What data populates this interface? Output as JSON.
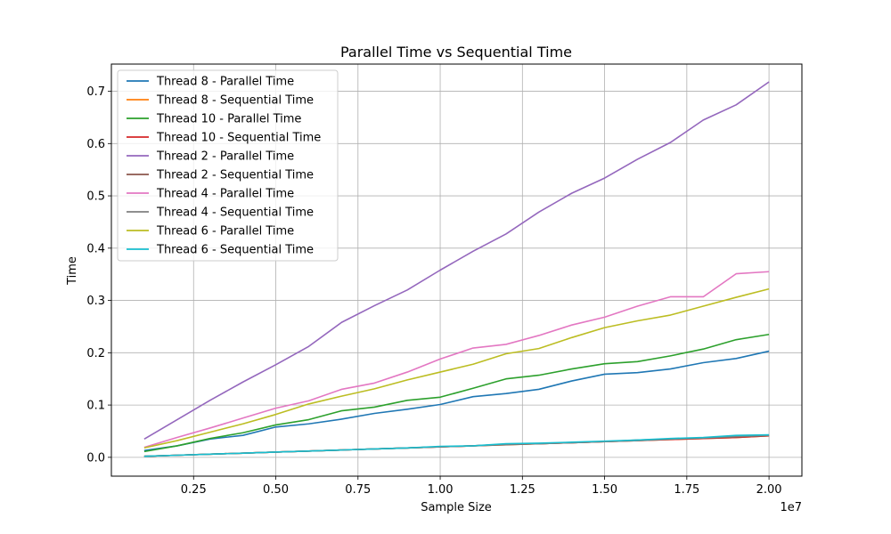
{
  "chart_data": {
    "type": "line",
    "title": "Parallel Time vs Sequential Time",
    "xlabel": "Sample Size",
    "ylabel": "Time",
    "x_offset_label": "1e7",
    "x": [
      1000000,
      2000000,
      3000000,
      4000000,
      5000000,
      6000000,
      7000000,
      8000000,
      9000000,
      10000000,
      11000000,
      12000000,
      13000000,
      14000000,
      15000000,
      16000000,
      17000000,
      18000000,
      19000000,
      20000000
    ],
    "xlim": [
      0,
      21000000
    ],
    "ylim": [
      -0.036,
      0.752
    ],
    "x_ticks": [
      {
        "value": 2500000,
        "label": "0.25"
      },
      {
        "value": 5000000,
        "label": "0.50"
      },
      {
        "value": 7500000,
        "label": "0.75"
      },
      {
        "value": 10000000,
        "label": "1.00"
      },
      {
        "value": 12500000,
        "label": "1.25"
      },
      {
        "value": 15000000,
        "label": "1.50"
      },
      {
        "value": 17500000,
        "label": "1.75"
      },
      {
        "value": 20000000,
        "label": "2.00"
      }
    ],
    "y_ticks": [
      {
        "value": 0.0,
        "label": "0.0"
      },
      {
        "value": 0.1,
        "label": "0.1"
      },
      {
        "value": 0.2,
        "label": "0.2"
      },
      {
        "value": 0.3,
        "label": "0.3"
      },
      {
        "value": 0.4,
        "label": "0.4"
      },
      {
        "value": 0.5,
        "label": "0.5"
      },
      {
        "value": 0.6,
        "label": "0.6"
      },
      {
        "value": 0.7,
        "label": "0.7"
      }
    ],
    "grid": true,
    "legend_position": "top-left",
    "series": [
      {
        "name": "Thread 8 - Parallel Time",
        "color": "#1f77b4",
        "values": [
          0.013,
          0.022,
          0.035,
          0.042,
          0.058,
          0.064,
          0.073,
          0.084,
          0.092,
          0.101,
          0.116,
          0.122,
          0.13,
          0.146,
          0.159,
          0.162,
          0.169,
          0.181,
          0.189,
          0.203
        ]
      },
      {
        "name": "Thread 8 - Sequential Time",
        "color": "#ff7f0e",
        "values": [
          0.002,
          0.004,
          0.006,
          0.008,
          0.01,
          0.012,
          0.014,
          0.016,
          0.018,
          0.02,
          0.022,
          0.024,
          0.026,
          0.028,
          0.03,
          0.032,
          0.034,
          0.036,
          0.038,
          0.041
        ]
      },
      {
        "name": "Thread 10 - Parallel Time",
        "color": "#2ca02c",
        "values": [
          0.011,
          0.022,
          0.036,
          0.047,
          0.062,
          0.072,
          0.089,
          0.096,
          0.109,
          0.115,
          0.132,
          0.15,
          0.157,
          0.169,
          0.179,
          0.183,
          0.194,
          0.207,
          0.225,
          0.235
        ]
      },
      {
        "name": "Thread 10 - Sequential Time",
        "color": "#d62728",
        "values": [
          0.002,
          0.004,
          0.006,
          0.008,
          0.01,
          0.012,
          0.014,
          0.016,
          0.018,
          0.02,
          0.022,
          0.025,
          0.026,
          0.028,
          0.03,
          0.032,
          0.034,
          0.036,
          0.038,
          0.041
        ]
      },
      {
        "name": "Thread 2 - Parallel Time",
        "color": "#9467bd",
        "values": [
          0.035,
          0.072,
          0.109,
          0.144,
          0.177,
          0.212,
          0.258,
          0.29,
          0.32,
          0.358,
          0.394,
          0.427,
          0.469,
          0.505,
          0.534,
          0.57,
          0.602,
          0.645,
          0.674,
          0.718
        ]
      },
      {
        "name": "Thread 2 - Sequential Time",
        "color": "#8c564b",
        "values": [
          0.002,
          0.004,
          0.006,
          0.008,
          0.01,
          0.012,
          0.014,
          0.016,
          0.018,
          0.02,
          0.022,
          0.024,
          0.026,
          0.028,
          0.03,
          0.033,
          0.035,
          0.037,
          0.039,
          0.042
        ]
      },
      {
        "name": "Thread 4 - Parallel Time",
        "color": "#e377c2",
        "values": [
          0.019,
          0.038,
          0.056,
          0.075,
          0.094,
          0.108,
          0.13,
          0.142,
          0.163,
          0.188,
          0.209,
          0.216,
          0.233,
          0.253,
          0.268,
          0.289,
          0.307,
          0.307,
          0.351,
          0.355
        ]
      },
      {
        "name": "Thread 4 - Sequential Time",
        "color": "#7f7f7f",
        "values": [
          0.002,
          0.004,
          0.006,
          0.008,
          0.01,
          0.012,
          0.014,
          0.016,
          0.018,
          0.02,
          0.022,
          0.025,
          0.026,
          0.028,
          0.03,
          0.032,
          0.035,
          0.037,
          0.04,
          0.042
        ]
      },
      {
        "name": "Thread 6 - Parallel Time",
        "color": "#bcbd22",
        "values": [
          0.018,
          0.032,
          0.048,
          0.064,
          0.082,
          0.102,
          0.117,
          0.131,
          0.148,
          0.163,
          0.178,
          0.198,
          0.208,
          0.229,
          0.248,
          0.261,
          0.272,
          0.289,
          0.306,
          0.322
        ]
      },
      {
        "name": "Thread 6 - Sequential Time",
        "color": "#17becf",
        "values": [
          0.002,
          0.004,
          0.006,
          0.008,
          0.01,
          0.012,
          0.014,
          0.016,
          0.018,
          0.021,
          0.022,
          0.026,
          0.027,
          0.029,
          0.031,
          0.033,
          0.036,
          0.038,
          0.042,
          0.043
        ]
      }
    ]
  }
}
